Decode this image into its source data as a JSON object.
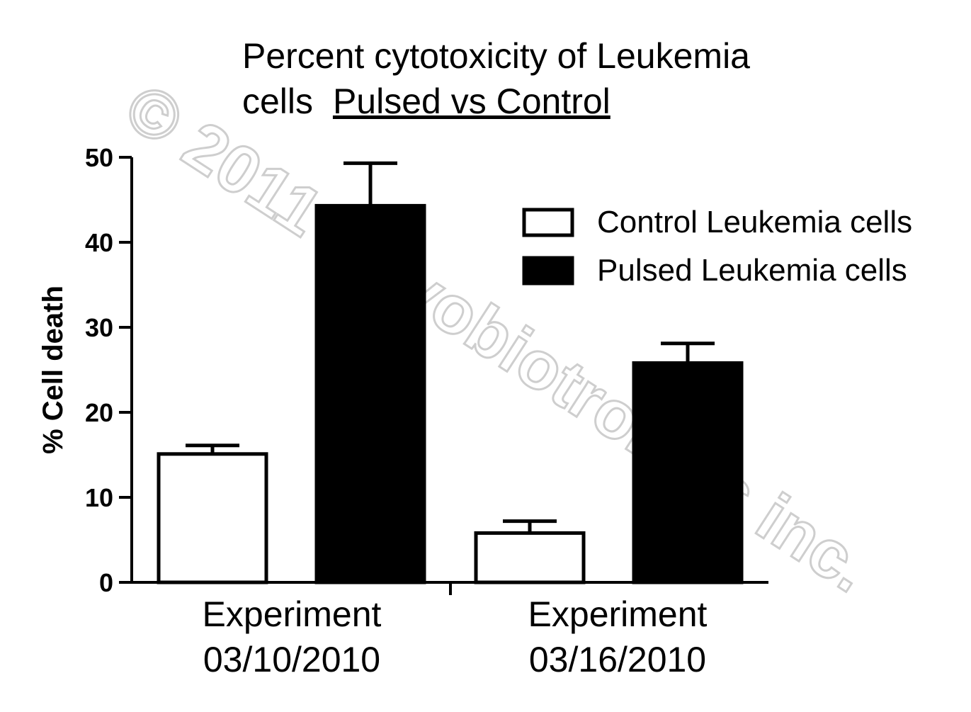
{
  "chart_data": {
    "type": "bar",
    "title": [
      "Percent cytotoxicity of Leukemia",
      "cells",
      "Pulsed vs Control"
    ],
    "ylabel": "% Cell death",
    "xlabel": "",
    "ylim": [
      0,
      50
    ],
    "yticks": [
      "0",
      "10",
      "20",
      "30",
      "40",
      "50"
    ],
    "categories": [
      [
        "Experiment",
        "03/10/2010"
      ],
      [
        "Experiment",
        "03/16/2010"
      ]
    ],
    "series": [
      {
        "name": "Control Leukemia cells",
        "fill": "#ffffff",
        "values": [
          15.1,
          5.8
        ],
        "errors": [
          1.0,
          1.4
        ]
      },
      {
        "name": "Pulsed Leukemia cells",
        "fill": "#000000",
        "values": [
          44.3,
          25.8
        ],
        "errors": [
          5.0,
          2.3
        ]
      }
    ],
    "legend_position": "top-right",
    "grid": false
  },
  "watermark": "© 2011 Novobiotronics inc."
}
